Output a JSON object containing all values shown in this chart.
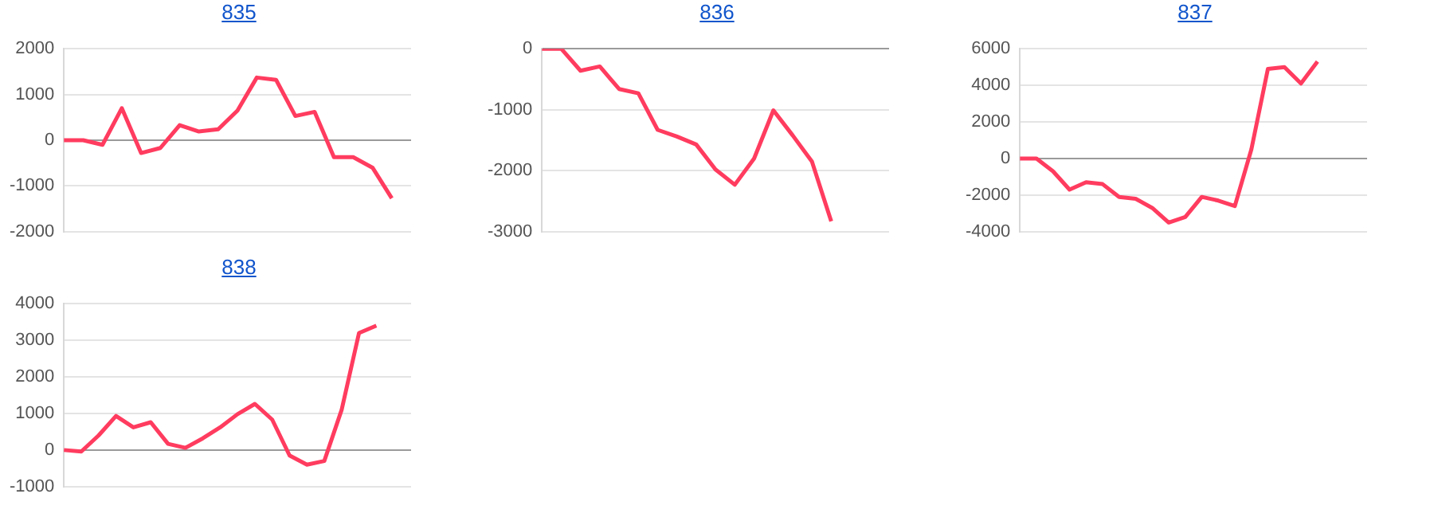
{
  "chart_data": [
    {
      "type": "line",
      "title": "835",
      "categories": [
        null,
        null,
        null,
        null,
        null,
        null,
        null,
        null,
        null,
        null,
        null,
        null,
        null,
        null,
        null,
        null,
        null,
        null,
        null
      ],
      "series": [
        {
          "color": "#ff3c5f",
          "values": [
            0,
            0,
            -100,
            700,
            -280,
            -170,
            330,
            190,
            240,
            650,
            1370,
            1320,
            530,
            620,
            -370,
            -370,
            -600,
            -1270,
            null
          ]
        }
      ],
      "ylim": [
        -2000,
        2000
      ],
      "yticks": [
        -2000,
        -1000,
        0,
        1000,
        2000
      ],
      "grid": "y",
      "legend": false,
      "tick_labels": "y",
      "marker": "none",
      "line_style": "solid"
    },
    {
      "type": "line",
      "title": "836",
      "categories": [
        null,
        null,
        null,
        null,
        null,
        null,
        null,
        null,
        null,
        null,
        null,
        null,
        null,
        null,
        null,
        null,
        null,
        null,
        null
      ],
      "series": [
        {
          "color": "#ff3c5f",
          "values": [
            0,
            0,
            -360,
            -290,
            -660,
            -730,
            -1330,
            -1440,
            -1570,
            -1980,
            -2230,
            -1800,
            -1010,
            -1420,
            -1850,
            -2830,
            null,
            null,
            null
          ]
        }
      ],
      "ylim": [
        -3000,
        0
      ],
      "yticks": [
        -3000,
        -2000,
        -1000,
        0
      ],
      "grid": "y",
      "legend": false,
      "tick_labels": "y",
      "marker": "none",
      "line_style": "solid"
    },
    {
      "type": "line",
      "title": "837",
      "categories": [
        null,
        null,
        null,
        null,
        null,
        null,
        null,
        null,
        null,
        null,
        null,
        null,
        null,
        null,
        null,
        null,
        null,
        null,
        null,
        null,
        null,
        null
      ],
      "series": [
        {
          "color": "#ff3c5f",
          "values": [
            0,
            0,
            -700,
            -1700,
            -1300,
            -1400,
            -2100,
            -2200,
            -2700,
            -3500,
            -3200,
            -2100,
            -2300,
            -2600,
            500,
            4900,
            5000,
            4100,
            5300,
            null,
            null,
            null
          ]
        }
      ],
      "ylim": [
        -4000,
        6000
      ],
      "yticks": [
        -4000,
        -2000,
        0,
        2000,
        4000,
        6000
      ],
      "grid": "y",
      "legend": false,
      "tick_labels": "y",
      "marker": "none",
      "line_style": "solid"
    },
    {
      "type": "line",
      "title": "838",
      "categories": [
        null,
        null,
        null,
        null,
        null,
        null,
        null,
        null,
        null,
        null,
        null,
        null,
        null,
        null,
        null,
        null,
        null,
        null,
        null,
        null,
        null
      ],
      "series": [
        {
          "color": "#ff3c5f",
          "values": [
            0,
            -40,
            400,
            930,
            620,
            760,
            170,
            60,
            320,
            620,
            980,
            1260,
            830,
            -150,
            -400,
            -300,
            1100,
            3200,
            3400,
            null,
            null
          ]
        }
      ],
      "ylim": [
        -1000,
        4000
      ],
      "yticks": [
        -1000,
        0,
        1000,
        2000,
        3000,
        4000
      ],
      "grid": "y",
      "legend": false,
      "tick_labels": "y",
      "marker": "none",
      "line_style": "solid"
    }
  ]
}
